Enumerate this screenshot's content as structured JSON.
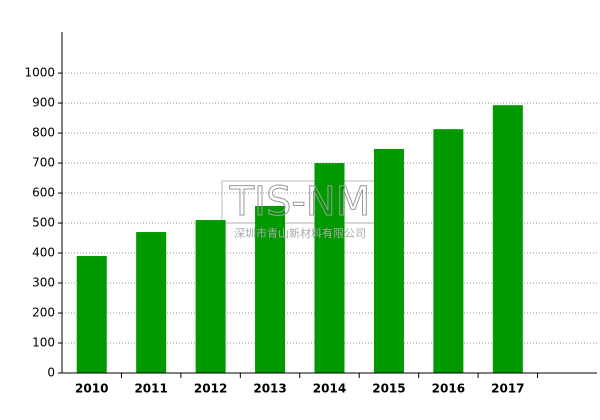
{
  "chart_data": {
    "type": "bar",
    "categories": [
      "2010",
      "2011",
      "2012",
      "2013",
      "2014",
      "2015",
      "2016",
      "2017",
      null
    ],
    "values": [
      390,
      470,
      510,
      557,
      700,
      747,
      813,
      893,
      null
    ],
    "color": "#009900",
    "ylim": [
      0,
      1137
    ],
    "yticks": [
      0,
      100,
      200,
      300,
      400,
      500,
      600,
      700,
      800,
      900,
      1000
    ],
    "grid": true,
    "annotations": [
      "TIS-NM",
      "深圳市青山新材料有限公司"
    ]
  }
}
